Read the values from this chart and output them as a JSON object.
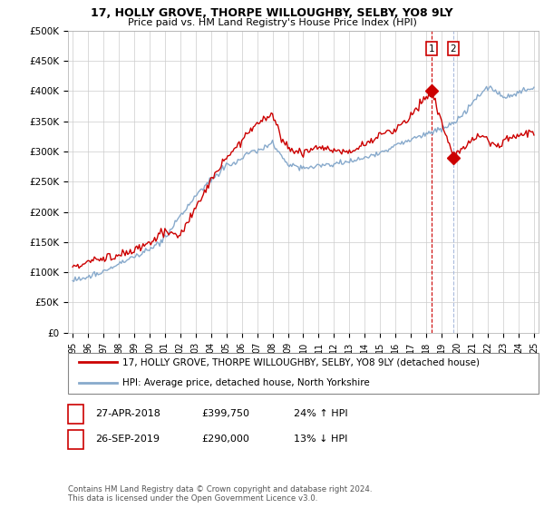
{
  "title": "17, HOLLY GROVE, THORPE WILLOUGHBY, SELBY, YO8 9LY",
  "subtitle": "Price paid vs. HM Land Registry's House Price Index (HPI)",
  "ylabel_ticks": [
    "£0",
    "£50K",
    "£100K",
    "£150K",
    "£200K",
    "£250K",
    "£300K",
    "£350K",
    "£400K",
    "£450K",
    "£500K"
  ],
  "ytick_values": [
    0,
    50000,
    100000,
    150000,
    200000,
    250000,
    300000,
    350000,
    400000,
    450000,
    500000
  ],
  "ylim": [
    0,
    500000
  ],
  "legend_label_red": "17, HOLLY GROVE, THORPE WILLOUGHBY, SELBY, YO8 9LY (detached house)",
  "legend_label_blue": "HPI: Average price, detached house, North Yorkshire",
  "event1_label": "1",
  "event1_date": "27-APR-2018",
  "event1_price": "£399,750",
  "event1_hpi": "24% ↑ HPI",
  "event2_label": "2",
  "event2_date": "26-SEP-2019",
  "event2_price": "£290,000",
  "event2_hpi": "13% ↓ HPI",
  "footer": "Contains HM Land Registry data © Crown copyright and database right 2024.\nThis data is licensed under the Open Government Licence v3.0.",
  "red_color": "#cc0000",
  "blue_color": "#88aacc",
  "event1_vline_color": "#cc0000",
  "event2_vline_color": "#aabbdd",
  "background_color": "#ffffff",
  "grid_color": "#cccccc",
  "event1_x": 2018.33,
  "event2_x": 2019.75,
  "event1_y": 399750,
  "event2_y": 290000,
  "xlim_left": 1994.7,
  "xlim_right": 2025.3
}
